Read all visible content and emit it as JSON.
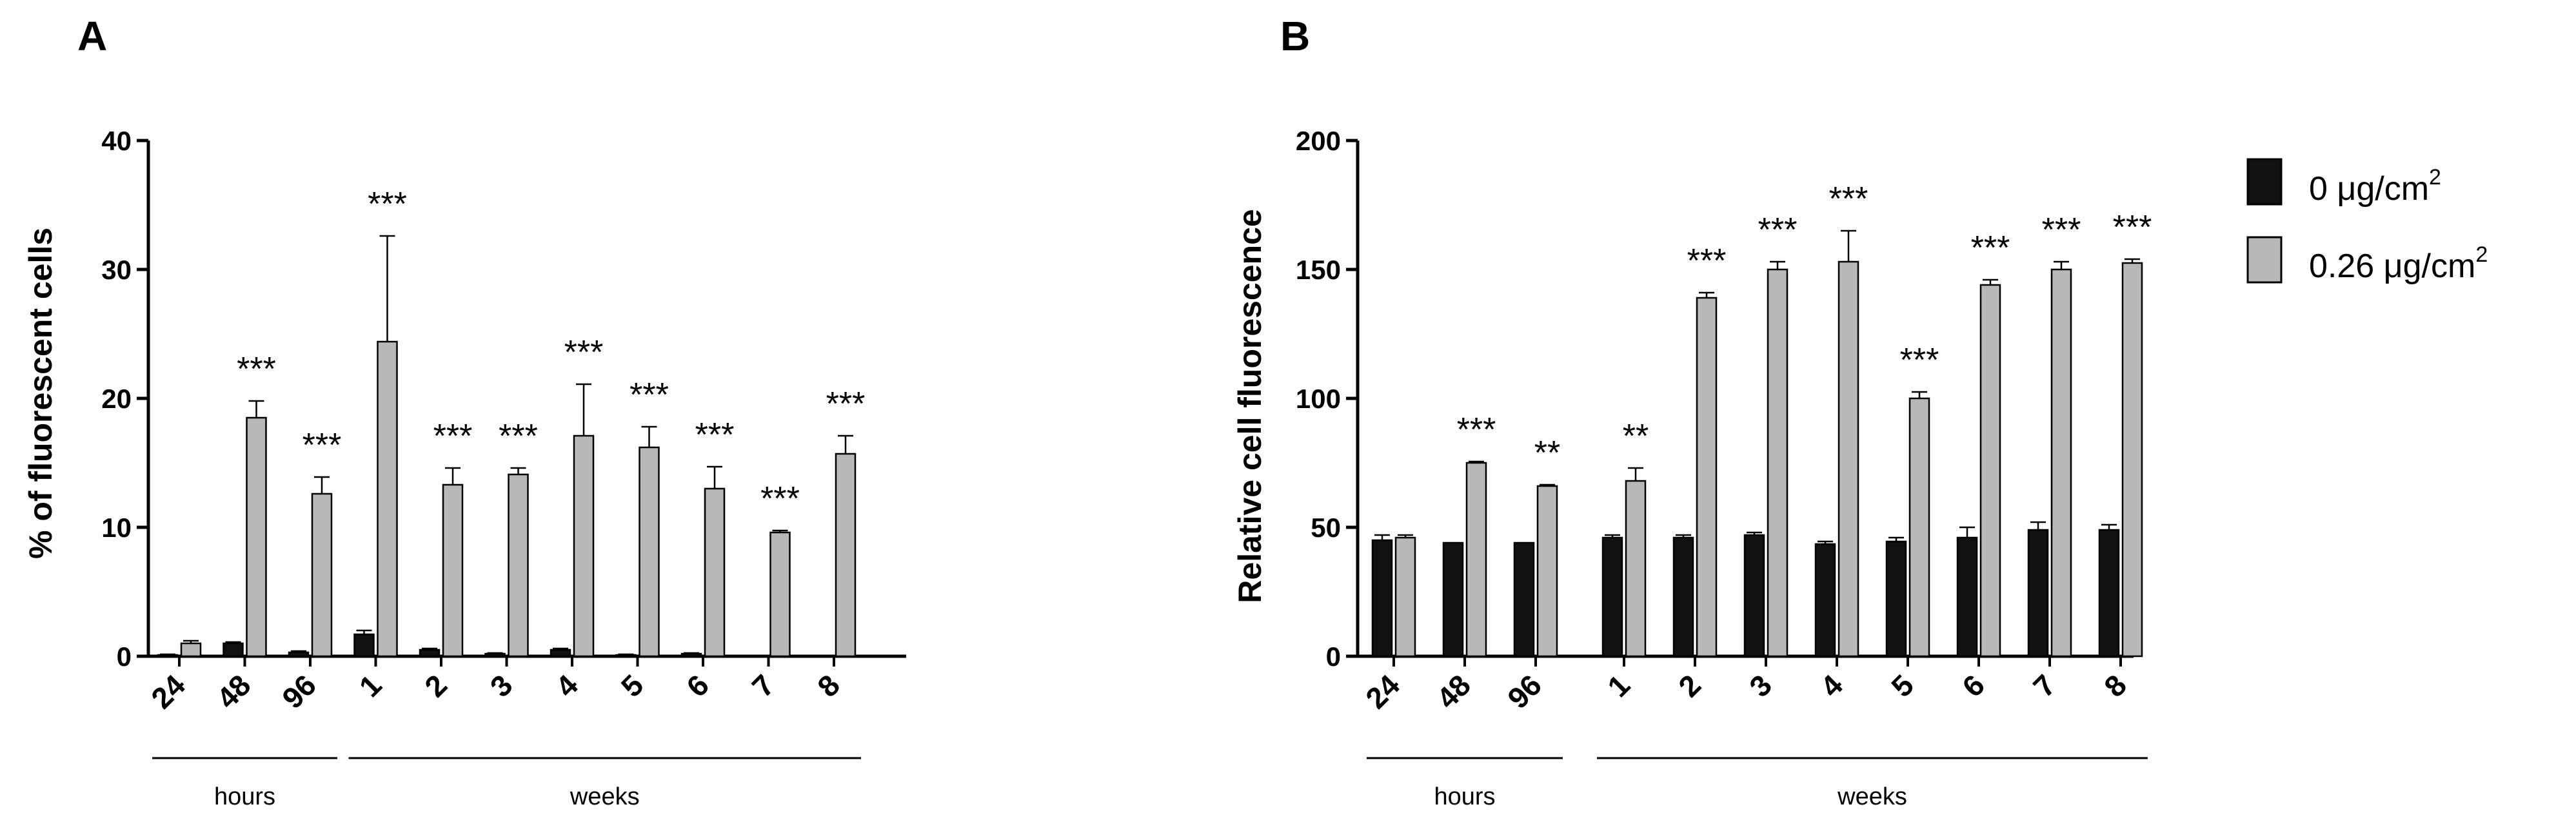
{
  "legend": [
    {
      "name": "0 μg/cm",
      "sup": "2",
      "color": "#111111"
    },
    {
      "name": "0.26 μg/cm",
      "sup": "2",
      "color": "#b8b8b8"
    }
  ],
  "chart_data": [
    {
      "panel": "A",
      "type": "bar",
      "title": "",
      "xlabel": "",
      "ylabel": "% of fluorescent cells",
      "ylim": [
        0,
        40
      ],
      "yticks": [
        0,
        10,
        20,
        30,
        40
      ],
      "categories": [
        "24",
        "48",
        "96",
        "1",
        "2",
        "3",
        "4",
        "5",
        "6",
        "7",
        "8"
      ],
      "groups": [
        {
          "label": "hours",
          "from": 0,
          "to": 2
        },
        {
          "label": "weeks",
          "from": 3,
          "to": 10
        }
      ],
      "series": [
        {
          "name": "0 μg/cm2",
          "values": [
            0.1,
            1.0,
            0.3,
            1.7,
            0.5,
            0.2,
            0.5,
            0.1,
            0.2,
            0.0,
            0.0
          ],
          "errors": [
            0.05,
            0.1,
            0.1,
            0.3,
            0.1,
            0.05,
            0.1,
            0.05,
            0.05,
            0.0,
            0.0
          ]
        },
        {
          "name": "0.26 μg/cm2",
          "values": [
            1.0,
            18.5,
            12.6,
            24.4,
            13.3,
            14.1,
            17.1,
            16.2,
            13.0,
            9.6,
            15.7
          ],
          "errors": [
            0.2,
            1.3,
            1.3,
            8.2,
            1.3,
            0.5,
            4.0,
            1.6,
            1.7,
            0.15,
            1.4
          ]
        }
      ],
      "significance": [
        "",
        "***",
        "***",
        "***",
        "***",
        "***",
        "***",
        "***",
        "***",
        "***",
        "***"
      ]
    },
    {
      "panel": "B",
      "type": "bar",
      "title": "",
      "xlabel": "",
      "ylabel": "Relative cell fluorescence",
      "ylim": [
        0,
        200
      ],
      "yticks": [
        0,
        50,
        100,
        150,
        200
      ],
      "categories": [
        "24",
        "48",
        "96",
        "1",
        "2",
        "3",
        "4",
        "5",
        "6",
        "7",
        "8"
      ],
      "groups": [
        {
          "label": "hours",
          "from": 0,
          "to": 2
        },
        {
          "label": "weeks",
          "from": 3,
          "to": 10
        }
      ],
      "series": [
        {
          "name": "0 μg/cm2",
          "values": [
            45,
            44,
            44,
            46,
            46,
            47,
            43.5,
            44.5,
            46,
            49,
            49
          ],
          "errors": [
            2,
            0,
            0,
            1,
            1,
            1,
            1,
            1.5,
            4,
            3,
            2
          ]
        },
        {
          "name": "0.26 μg/cm2",
          "values": [
            46,
            75,
            66,
            68,
            139,
            150,
            153,
            100,
            144,
            150,
            152.5
          ],
          "errors": [
            1,
            0.5,
            0.5,
            5,
            2,
            3,
            12,
            2.5,
            2,
            3,
            1.5
          ]
        }
      ],
      "significance": [
        "",
        "***",
        "**",
        "**",
        "***",
        "***",
        "***",
        "***",
        "***",
        "***",
        "***"
      ]
    }
  ]
}
